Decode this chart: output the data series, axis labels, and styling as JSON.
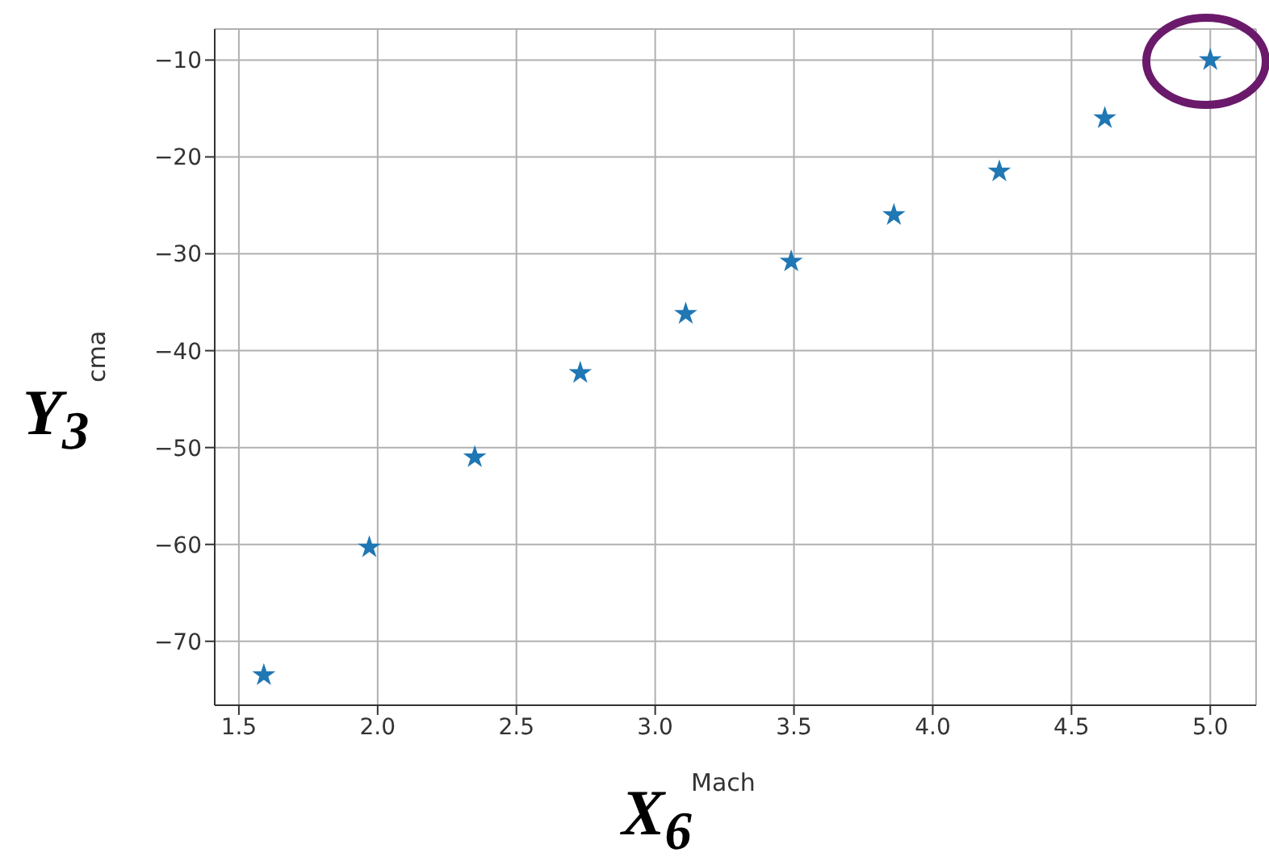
{
  "chart_data": {
    "type": "scatter",
    "xlabel": "Mach",
    "ylabel": "cma",
    "annotations": [
      "Y$_{3}$",
      "X$_{6}$"
    ],
    "x": [
      1.59,
      1.97,
      2.35,
      2.73,
      3.11,
      3.49,
      3.86,
      4.24,
      4.62,
      5.0
    ],
    "series": [
      {
        "color": "#1f77b4",
        "values": [
          -73.5,
          -60.3,
          -51.0,
          -42.3,
          -36.2,
          -30.8,
          -26.0,
          -21.5,
          -16.0,
          -10.0
        ]
      }
    ],
    "marker": "star",
    "grid": true,
    "xlim": [
      1.413,
      5.165
    ],
    "ylim": [
      -76.6,
      -6.8
    ],
    "xticks": [
      {
        "value": 1.5,
        "label": "1.5"
      },
      {
        "value": 2,
        "label": "2.0"
      },
      {
        "value": 2.5,
        "label": "2.5"
      },
      {
        "value": 3,
        "label": "3.0"
      },
      {
        "value": 3.5,
        "label": "3.5"
      },
      {
        "value": 4,
        "label": "4.0"
      },
      {
        "value": 4.5,
        "label": "4.5"
      },
      {
        "value": 5,
        "label": "5.0"
      }
    ],
    "yticks": [
      {
        "value": -70,
        "label": "−70"
      },
      {
        "value": -60,
        "label": "−60"
      },
      {
        "value": -50,
        "label": "−50"
      },
      {
        "value": -40,
        "label": "−40"
      },
      {
        "value": -30,
        "label": "−30"
      },
      {
        "value": -20,
        "label": "−20"
      },
      {
        "value": -10,
        "label": "−10"
      }
    ]
  }
}
